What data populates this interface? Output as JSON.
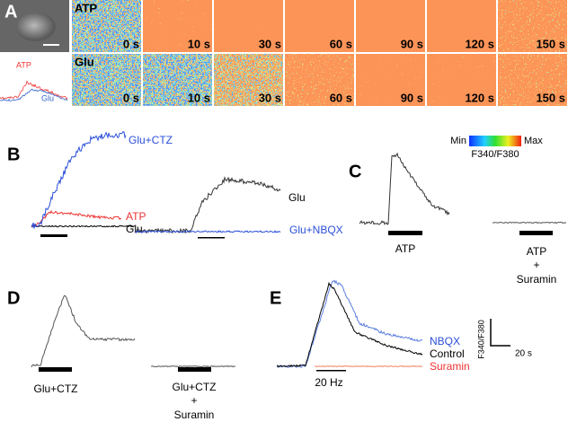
{
  "panel_a": {
    "label": "A",
    "rows": [
      {
        "name": "ATP",
        "times": [
          "0 s",
          "10 s",
          "30 s",
          "60 s",
          "90 s",
          "120 s",
          "150 s"
        ]
      },
      {
        "name": "Glu",
        "times": [
          "0 s",
          "10 s",
          "30 s",
          "60 s",
          "90 s",
          "120 s",
          "150 s"
        ]
      }
    ],
    "inset_labels": [
      "ATP",
      "Glu"
    ],
    "colorbar": {
      "min": "Min",
      "max": "Max",
      "quantity": "F340/F380"
    }
  },
  "panel_b": {
    "label": "B",
    "traces": [
      "Glu+CTZ",
      "ATP",
      "Glu",
      "Glu",
      "Glu+NBQX"
    ]
  },
  "panel_c": {
    "label": "C",
    "labels": [
      "ATP",
      "ATP",
      "+",
      "Suramin"
    ]
  },
  "panel_d": {
    "label": "D",
    "labels": [
      "Glu+CTZ",
      "Glu+CTZ",
      "+",
      "Suramin"
    ]
  },
  "panel_e": {
    "label": "E",
    "traces": [
      "NBQX",
      "Control",
      "Suramin"
    ],
    "stim": "20 Hz",
    "scale_y": "F340/F380",
    "scale_x": "20 s"
  }
}
